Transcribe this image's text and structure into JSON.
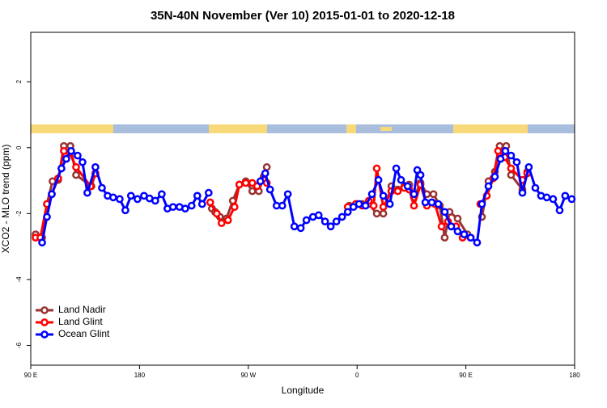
{
  "chart_data": {
    "type": "line",
    "title": "35N-40N November (Ver 10)   2015-01-01 to 2020-12-18",
    "x_label": "Longitude",
    "y_label": "XCO2 - MLO trend (ppm)",
    "xlim": [
      90,
      540
    ],
    "xticks": [
      {
        "value": 90,
        "label": "90 E"
      },
      180,
      {
        "value": 270,
        "label": "90 W"
      },
      {
        "value": 360,
        "label": "0"
      },
      {
        "value": 450,
        "label": "90 E"
      },
      {
        "value": 540,
        "label": "180"
      }
    ],
    "ylim": [
      -6.6,
      3.5
    ],
    "yticks": [
      -6,
      -4,
      -2,
      0,
      2
    ],
    "legend": "bottom-left",
    "series": [
      {
        "name": "Land Nadir",
        "color": "#993333",
        "x": [
          94,
          99.4,
          103.4,
          108,
          112.7,
          117.4,
          122.8,
          127.5,
          140.2,
          143.5,
          null,
          239.9,
          242.5,
          246.5,
          251.9,
          257.2,
          262.6,
          267.9,
          273.3,
          278.7,
          282.7,
          285.3,
          null,
          353.6,
          359,
          364.3,
          369.7,
          376.3,
          381.7,
          388.4,
          393.7,
          399.1,
          403.1,
          407.1,
          412.5,
          417.8,
          423.2,
          428.5,
          432.5,
          436.5,
          443.2,
          451.3,
          null,
          463.3,
          468.7,
          474,
          478,
          483.4,
          487.4,
          496.8,
          500.8
        ],
        "values": [
          -2.63,
          -2.73,
          -1.71,
          -1.02,
          -0.98,
          0.05,
          0.05,
          -0.83,
          -1.17,
          -0.78,
          null,
          -1.85,
          -1.95,
          -2.1,
          -2.15,
          -1.61,
          -1.12,
          -1.02,
          -1.32,
          -1.32,
          -0.88,
          -0.59,
          null,
          -1.76,
          -1.71,
          -1.71,
          -1.71,
          -2.0,
          -2.0,
          -1.17,
          -1.27,
          -1.17,
          -1.12,
          -1.51,
          -1.07,
          -1.41,
          -1.41,
          -1.76,
          -2.73,
          -1.95,
          -2.15,
          -2.63,
          null,
          -2.1,
          -1.02,
          -0.73,
          0.05,
          0.05,
          -0.83,
          -1.27,
          -0.73
        ]
      },
      {
        "name": "Land Glint",
        "color": "#ff0000",
        "x": [
          94,
          98,
          103.4,
          107.4,
          112.7,
          117.4,
          122.1,
          127.5,
          139.5,
          143.5,
          null,
          238.5,
          243.9,
          247.9,
          253.2,
          258.6,
          262.6,
          267.9,
          273.3,
          277.3,
          282.7,
          285.3,
          null,
          352.3,
          359,
          364.3,
          369.7,
          373.7,
          376.3,
          381.7,
          388.4,
          393.7,
          399.1,
          403.1,
          407.1,
          412.5,
          417.8,
          424.5,
          429.9,
          435.2,
          441.9,
          447.3,
          454,
          null,
          462,
          467.3,
          472.7,
          476.7,
          482.1,
          487.4,
          496.8,
          500.8
        ],
        "values": [
          -2.73,
          -2.73,
          -1.71,
          -1.41,
          -0.93,
          -0.1,
          -0.15,
          -0.59,
          -1.17,
          -0.78,
          null,
          -1.66,
          -2.0,
          -2.29,
          -2.2,
          -1.8,
          -1.12,
          -1.07,
          -1.07,
          -1.17,
          -0.98,
          -1.07,
          null,
          -1.8,
          -1.71,
          -1.76,
          -1.61,
          -1.76,
          -0.63,
          -1.8,
          -1.32,
          -1.32,
          -1.22,
          -1.27,
          -1.76,
          -1.12,
          -1.76,
          -1.71,
          -2.39,
          -2.24,
          -2.39,
          -2.73,
          -2.73,
          null,
          -1.71,
          -1.46,
          -0.93,
          -0.1,
          -0.29,
          -0.63,
          -0.98,
          -0.78
        ]
      },
      {
        "name": "Ocean Glint",
        "color": "#0000ff",
        "x": [
          99.4,
          103.4,
          107.4,
          115.4,
          119.4,
          123.4,
          128.8,
          132.8,
          136.8,
          143.5,
          148.9,
          153.6,
          158.2,
          163.6,
          168.3,
          172.9,
          178.3,
          183.7,
          188.3,
          193,
          198.4,
          203.1,
          207.7,
          213.1,
          217.8,
          223.1,
          227.8,
          231.8,
          237.2,
          null,
          280,
          284,
          288,
          293.4,
          298.1,
          302.7,
          308.1,
          313.4,
          318.1,
          323.5,
          328.2,
          333.5,
          338.2,
          342.9,
          347.6,
          352.3,
          357,
          361.6,
          367,
          372.3,
          377.7,
          381.7,
          387.1,
          392.4,
          396.4,
          401.8,
          407.1,
          409.8,
          412.5,
          416.5,
          421.8,
          427.2,
          432.5,
          437.9,
          443.2,
          448.6,
          454,
          459.3,
          463.3,
          468.7,
          474,
          478.7,
          482.7,
          487.4,
          492.1,
          496.8,
          502.1,
          507.5,
          512.2,
          516.9,
          522.2,
          527.6,
          532.2,
          537.6
        ],
        "values": [
          -2.88,
          -2.1,
          -1.41,
          -0.63,
          -0.34,
          -0.1,
          -0.24,
          -0.44,
          -1.37,
          -0.59,
          -1.22,
          -1.46,
          -1.51,
          -1.56,
          -1.9,
          -1.46,
          -1.56,
          -1.46,
          -1.54,
          -1.61,
          -1.41,
          -1.85,
          -1.8,
          -1.8,
          -1.85,
          -1.76,
          -1.46,
          -1.71,
          -1.37,
          null,
          -1.02,
          -0.78,
          -1.27,
          -1.76,
          -1.76,
          -1.41,
          -2.39,
          -2.44,
          -2.2,
          -2.1,
          -2.05,
          -2.24,
          -2.39,
          -2.24,
          -2.1,
          -1.95,
          -1.8,
          -1.71,
          -1.76,
          -1.41,
          -0.98,
          -1.46,
          -1.71,
          -0.63,
          -0.98,
          -1.17,
          -1.41,
          -0.68,
          -0.83,
          -1.66,
          -1.66,
          -1.71,
          -1.95,
          -2.39,
          -2.54,
          -2.63,
          -2.73,
          -2.88,
          -1.71,
          -1.17,
          -0.88,
          -0.34,
          -0.1,
          -0.24,
          -0.44,
          -1.37,
          -0.59,
          -1.22,
          -1.46,
          -1.51,
          -1.56,
          -1.9,
          -1.46,
          -1.56
        ]
      }
    ]
  }
}
